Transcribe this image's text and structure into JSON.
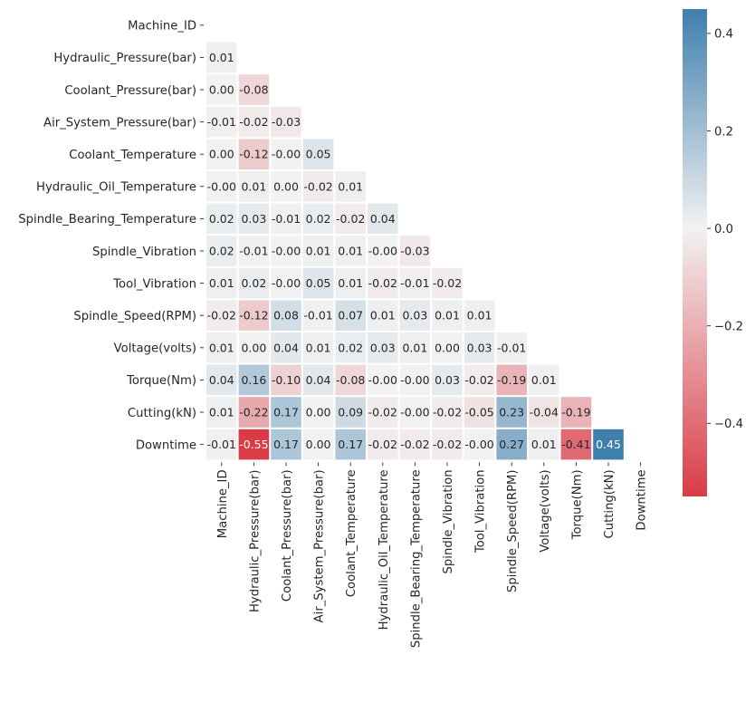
{
  "chart_data": {
    "type": "heatmap",
    "title": "",
    "xlabel": "",
    "ylabel": "",
    "mask": "upper-triangle",
    "variables": [
      "Machine_ID",
      "Hydraulic_Pressure(bar)",
      "Coolant_Pressure(bar)",
      "Air_System_Pressure(bar)",
      "Coolant_Temperature",
      "Hydraulic_Oil_Temperature",
      "Spindle_Bearing_Temperature",
      "Spindle_Vibration",
      "Tool_Vibration",
      "Spindle_Speed(RPM)",
      "Voltage(volts)",
      "Torque(Nm)",
      "Cutting(kN)",
      "Downtime"
    ],
    "rows": [
      [],
      [
        0.01
      ],
      [
        0.0,
        -0.08
      ],
      [
        -0.01,
        -0.02,
        -0.03
      ],
      [
        0.0,
        -0.12,
        -0.0,
        0.05
      ],
      [
        -0.0,
        0.01,
        0.0,
        -0.02,
        0.01
      ],
      [
        0.02,
        0.03,
        -0.01,
        0.02,
        -0.02,
        0.04
      ],
      [
        0.02,
        -0.01,
        -0.0,
        0.01,
        0.01,
        -0.0,
        -0.03
      ],
      [
        0.01,
        0.02,
        -0.0,
        0.05,
        0.01,
        -0.02,
        -0.01,
        -0.02
      ],
      [
        -0.02,
        -0.12,
        0.08,
        -0.01,
        0.07,
        0.01,
        0.03,
        0.01,
        0.01
      ],
      [
        0.01,
        0.0,
        0.04,
        0.01,
        0.02,
        0.03,
        0.01,
        0.0,
        0.03,
        -0.01
      ],
      [
        0.04,
        0.16,
        -0.1,
        0.04,
        -0.08,
        -0.0,
        -0.0,
        0.03,
        -0.02,
        -0.19,
        0.01
      ],
      [
        0.01,
        -0.22,
        0.17,
        0.0,
        0.09,
        -0.02,
        -0.0,
        -0.02,
        -0.05,
        0.23,
        -0.04,
        -0.19
      ],
      [
        -0.01,
        -0.55,
        0.17,
        0.0,
        0.17,
        -0.02,
        -0.02,
        -0.02,
        -0.0,
        0.27,
        0.01,
        -0.41,
        0.45
      ]
    ],
    "value_labels": [
      [],
      [
        "0.01"
      ],
      [
        "0.00",
        "-0.08"
      ],
      [
        "-0.01",
        "-0.02",
        "-0.03"
      ],
      [
        "0.00",
        "-0.12",
        "-0.00",
        "0.05"
      ],
      [
        "-0.00",
        "0.01",
        "0.00",
        "-0.02",
        "0.01"
      ],
      [
        "0.02",
        "0.03",
        "-0.01",
        "0.02",
        "-0.02",
        "0.04"
      ],
      [
        "0.02",
        "-0.01",
        "-0.00",
        "0.01",
        "0.01",
        "-0.00",
        "-0.03"
      ],
      [
        "0.01",
        "0.02",
        "-0.00",
        "0.05",
        "0.01",
        "-0.02",
        "-0.01",
        "-0.02"
      ],
      [
        "-0.02",
        "-0.12",
        "0.08",
        "-0.01",
        "0.07",
        "0.01",
        "0.03",
        "0.01",
        "0.01"
      ],
      [
        "0.01",
        "0.00",
        "0.04",
        "0.01",
        "0.02",
        "0.03",
        "0.01",
        "0.00",
        "0.03",
        "-0.01"
      ],
      [
        "0.04",
        "0.16",
        "-0.10",
        "0.04",
        "-0.08",
        "-0.00",
        "-0.00",
        "0.03",
        "-0.02",
        "-0.19",
        "0.01"
      ],
      [
        "0.01",
        "-0.22",
        "0.17",
        "0.00",
        "0.09",
        "-0.02",
        "-0.00",
        "-0.02",
        "-0.05",
        "0.23",
        "-0.04",
        "-0.19"
      ],
      [
        "-0.01",
        "-0.55",
        "0.17",
        "0.00",
        "0.17",
        "-0.02",
        "-0.02",
        "-0.02",
        "-0.00",
        "0.27",
        "0.01",
        "-0.41",
        "0.45"
      ]
    ],
    "colorbar": {
      "vmin": -0.55,
      "vmax": 0.45,
      "ticks": [
        0.4,
        0.2,
        0.0,
        -0.2,
        -0.4
      ],
      "tick_labels": [
        "0.4",
        "0.2",
        "0.0",
        "−0.2",
        "−0.4"
      ],
      "colors": {
        "negative": "#da3b46",
        "center": "#f2f2f2",
        "positive": "#3f7fad"
      }
    },
    "grid": false,
    "legend": "colorbar-right"
  }
}
